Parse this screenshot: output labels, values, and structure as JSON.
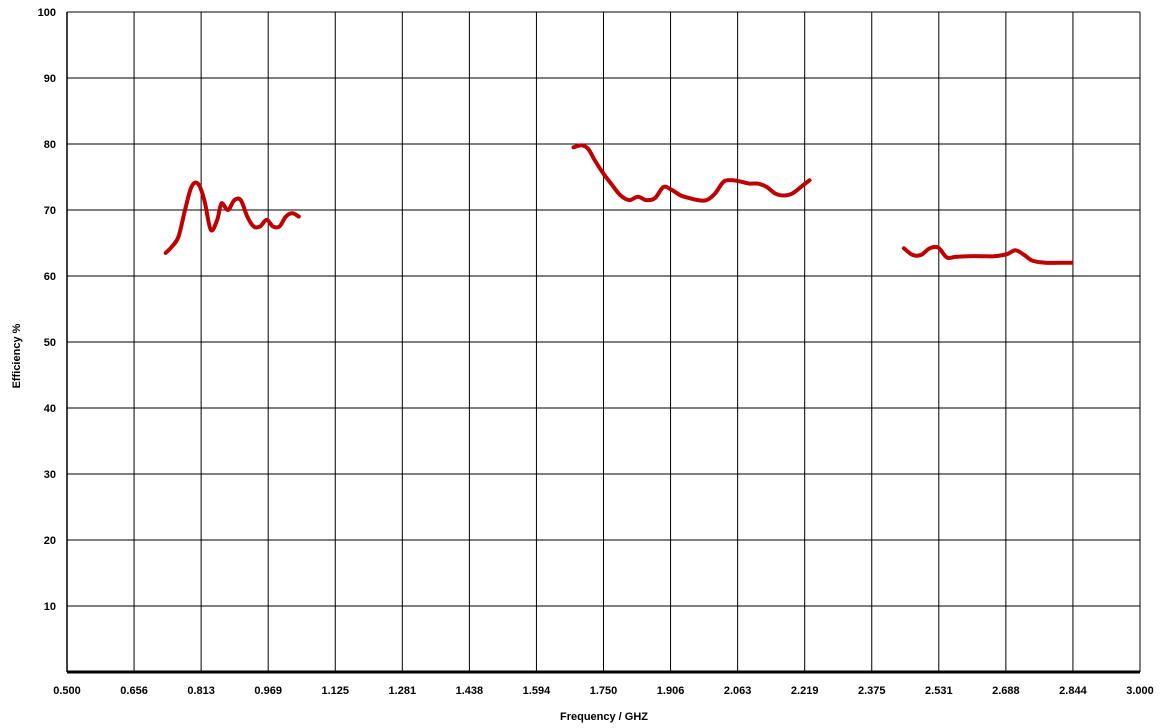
{
  "chart_data": {
    "type": "line",
    "xlabel": "Frequency / GHZ",
    "ylabel": "Efficiency %",
    "xlim": [
      0.5,
      3.0
    ],
    "ylim": [
      0,
      100
    ],
    "x_ticks": [
      "0.500",
      "0.656",
      "0.813",
      "0.969",
      "1.125",
      "1.281",
      "1.438",
      "1.594",
      "1.750",
      "1.906",
      "2.063",
      "2.219",
      "2.375",
      "2.531",
      "2.688",
      "2.844",
      "3.000"
    ],
    "y_ticks": [
      "10",
      "20",
      "30",
      "40",
      "50",
      "60",
      "70",
      "80",
      "90",
      "100"
    ],
    "grid": true,
    "color": "#c00000",
    "series": [
      {
        "x": [
          0.73,
          0.745,
          0.76,
          0.775,
          0.79,
          0.805,
          0.82,
          0.835,
          0.85,
          0.86,
          0.875,
          0.89,
          0.905,
          0.92,
          0.935,
          0.95,
          0.965,
          0.98,
          0.995,
          1.01,
          1.025,
          1.04
        ],
        "y": [
          63.5,
          64.5,
          66.0,
          70.0,
          73.5,
          74.0,
          71.5,
          67.0,
          68.5,
          71.0,
          70.0,
          71.5,
          71.5,
          69.0,
          67.5,
          67.5,
          68.5,
          67.5,
          67.5,
          69.0,
          69.5,
          69.0
        ]
      },
      {
        "x": [
          1.68,
          1.7,
          1.715,
          1.73,
          1.75,
          1.77,
          1.79,
          1.81,
          1.83,
          1.85,
          1.87,
          1.89,
          1.91,
          1.93,
          1.95,
          1.97,
          1.99,
          2.01,
          2.03,
          2.05,
          2.07,
          2.09,
          2.11,
          2.13,
          2.15,
          2.17,
          2.19,
          2.21,
          2.23
        ],
        "y": [
          79.5,
          79.8,
          79.2,
          77.5,
          75.5,
          73.8,
          72.2,
          71.5,
          72.0,
          71.5,
          71.8,
          73.5,
          73.0,
          72.2,
          71.8,
          71.5,
          71.5,
          72.5,
          74.3,
          74.5,
          74.3,
          74.0,
          74.0,
          73.5,
          72.5,
          72.2,
          72.5,
          73.5,
          74.5
        ]
      },
      {
        "x": [
          2.45,
          2.47,
          2.49,
          2.51,
          2.53,
          2.55,
          2.57,
          2.6,
          2.63,
          2.66,
          2.69,
          2.71,
          2.73,
          2.75,
          2.78,
          2.81,
          2.84
        ],
        "y": [
          64.2,
          63.2,
          63.2,
          64.2,
          64.3,
          62.8,
          62.9,
          63.0,
          63.0,
          63.0,
          63.3,
          63.9,
          63.2,
          62.3,
          62.0,
          62.0,
          62.0
        ]
      }
    ]
  }
}
